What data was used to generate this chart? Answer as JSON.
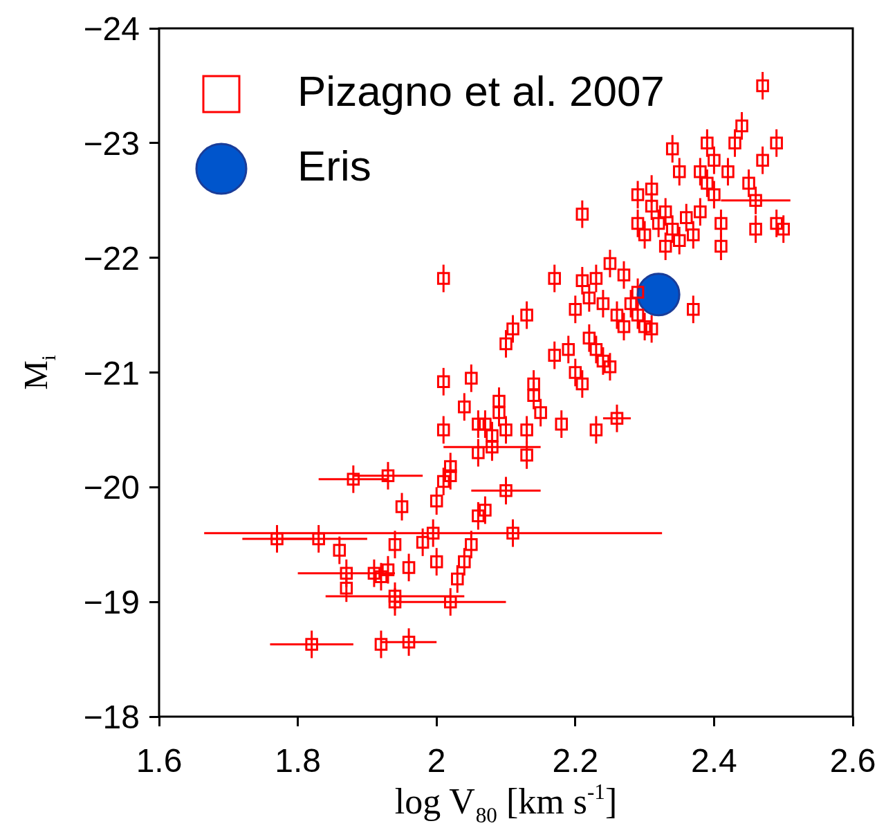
{
  "chart_data": {
    "type": "scatter",
    "xlabel": "log V$_{80}$ [km s$^{-1}$]",
    "ylabel": "M$_{i}$",
    "xlim": [
      1.6,
      2.6
    ],
    "ylim": [
      -18,
      -24
    ],
    "xticks": [
      1.6,
      1.8,
      2,
      2.2,
      2.4,
      2.6
    ],
    "yticks": [
      {
        "value": -24,
        "label": "−24"
      },
      {
        "value": -23,
        "label": "−23"
      },
      {
        "value": -22,
        "label": "−22"
      },
      {
        "value": -21,
        "label": "−21"
      },
      {
        "value": -20,
        "label": "−20"
      },
      {
        "value": -19,
        "label": "−19"
      },
      {
        "value": -18,
        "label": "−18"
      }
    ],
    "grid": false,
    "legend": "top left",
    "series": [
      {
        "name": "Pizagno et al. 2007",
        "color": "#ff0000",
        "marker": "square",
        "x": [
          1.77,
          1.83,
          1.86,
          1.87,
          1.87,
          1.91,
          1.92,
          1.93,
          1.94,
          1.94,
          1.94,
          1.96,
          1.98,
          2.0,
          2.02,
          2.03,
          2.04,
          2.05,
          2.06,
          2.07,
          2.11,
          2.1,
          1.995,
          1.82,
          1.92,
          1.96,
          1.88,
          1.93,
          1.95,
          2.0,
          2.01,
          2.02,
          2.02,
          2.06,
          2.07,
          2.08,
          2.09,
          2.1,
          2.08,
          2.13,
          2.13,
          2.14,
          2.15,
          2.14,
          2.06,
          2.04,
          2.05,
          2.01,
          2.01,
          2.09,
          2.18,
          2.23,
          2.26,
          2.1,
          2.11,
          2.13,
          2.17,
          2.19,
          2.2,
          2.21,
          2.2,
          2.22,
          2.23,
          2.24,
          2.25,
          2.26,
          2.27,
          2.17,
          2.21,
          2.22,
          2.23,
          2.24,
          2.25,
          2.27,
          2.28,
          2.29,
          2.3,
          2.31,
          2.29,
          2.37,
          2.01,
          2.21,
          2.29,
          2.29,
          2.3,
          2.31,
          2.31,
          2.32,
          2.33,
          2.33,
          2.34,
          2.34,
          2.35,
          2.35,
          2.36,
          2.37,
          2.38,
          2.38,
          2.39,
          2.39,
          2.4,
          2.4,
          2.41,
          2.41,
          2.42,
          2.43,
          2.44,
          2.45,
          2.46,
          2.46,
          2.47,
          2.47,
          2.49,
          2.49,
          2.5
        ],
        "values": [
          -19.55,
          -19.55,
          -19.45,
          -19.25,
          -19.12,
          -19.25,
          -19.22,
          -19.28,
          -19.5,
          -19.05,
          -19.0,
          -19.3,
          -19.52,
          -19.35,
          -19.0,
          -19.2,
          -19.35,
          -19.5,
          -19.75,
          -19.8,
          -19.6,
          -19.97,
          -19.6,
          -18.63,
          -18.63,
          -18.65,
          -20.07,
          -20.1,
          -19.83,
          -19.88,
          -20.05,
          -20.1,
          -20.18,
          -20.3,
          -20.55,
          -20.45,
          -20.75,
          -20.5,
          -20.35,
          -20.28,
          -20.5,
          -20.8,
          -20.65,
          -20.9,
          -20.55,
          -20.7,
          -20.95,
          -20.92,
          -20.5,
          -20.65,
          -20.55,
          -20.5,
          -20.6,
          -21.25,
          -21.38,
          -21.5,
          -21.15,
          -21.2,
          -21.0,
          -20.9,
          -21.55,
          -21.3,
          -21.2,
          -21.1,
          -21.05,
          -21.5,
          -21.4,
          -21.82,
          -21.8,
          -21.65,
          -21.82,
          -21.6,
          -21.95,
          -21.85,
          -21.6,
          -21.5,
          -21.4,
          -21.38,
          -21.7,
          -21.55,
          -21.82,
          -22.38,
          -22.3,
          -22.55,
          -22.2,
          -22.45,
          -22.6,
          -22.3,
          -22.1,
          -22.4,
          -22.25,
          -22.95,
          -22.75,
          -22.15,
          -22.35,
          -22.2,
          -22.4,
          -22.75,
          -23.0,
          -22.65,
          -22.85,
          -22.55,
          -22.3,
          -22.1,
          -22.75,
          -23.0,
          -23.15,
          -22.65,
          -22.5,
          -22.25,
          -22.85,
          -23.5,
          -23.0,
          -22.3,
          -22.25
        ],
        "errors": [
          0.12,
          0.12,
          0.12,
          0.12,
          0.12,
          0.12,
          0.12,
          0.12,
          0.12,
          0.12,
          0.12,
          0.12,
          0.12,
          0.12,
          0.12,
          0.12,
          0.12,
          0.12,
          0.12,
          0.12,
          0.12,
          0.12,
          0.12,
          0.12,
          0.12,
          0.12,
          0.12,
          0.12,
          0.12,
          0.12,
          0.12,
          0.12,
          0.12,
          0.12,
          0.12,
          0.12,
          0.12,
          0.12,
          0.12,
          0.12,
          0.12,
          0.12,
          0.12,
          0.12,
          0.12,
          0.12,
          0.12,
          0.12,
          0.12,
          0.12,
          0.12,
          0.12,
          0.12,
          0.12,
          0.12,
          0.12,
          0.12,
          0.12,
          0.12,
          0.12,
          0.12,
          0.12,
          0.12,
          0.12,
          0.12,
          0.12,
          0.12,
          0.12,
          0.12,
          0.12,
          0.12,
          0.12,
          0.12,
          0.12,
          0.12,
          0.12,
          0.12,
          0.12,
          0.12,
          0.12,
          0.12,
          0.12,
          0.12,
          0.12,
          0.12,
          0.12,
          0.12,
          0.12,
          0.12,
          0.12,
          0.12,
          0.12,
          0.12,
          0.12,
          0.12,
          0.12,
          0.12,
          0.12,
          0.12,
          0.12,
          0.12,
          0.12,
          0.12,
          0.12,
          0.12,
          0.12,
          0.12,
          0.12,
          0.12,
          0.12,
          0.12,
          0.12,
          0.12,
          0.12,
          0.12
        ],
        "xerrors": [
          0.05,
          0.07,
          null,
          0.07,
          null,
          null,
          null,
          null,
          null,
          0.1,
          null,
          null,
          null,
          null,
          0.08,
          null,
          null,
          null,
          null,
          null,
          null,
          0.05,
          0.33,
          0.06,
          null,
          0.04,
          0.05,
          0.05,
          null,
          null,
          null,
          null,
          null,
          null,
          null,
          null,
          null,
          null,
          0.07,
          null,
          null,
          null,
          null,
          null,
          null,
          null,
          null,
          null,
          null,
          null,
          null,
          null,
          0.02,
          null,
          null,
          null,
          null,
          null,
          null,
          null,
          null,
          null,
          null,
          null,
          null,
          null,
          null,
          null,
          null,
          null,
          null,
          null,
          null,
          null,
          null,
          null,
          null,
          null,
          null,
          null,
          null,
          null,
          null,
          null,
          null,
          null,
          null,
          null,
          null,
          null,
          null,
          null,
          null,
          null,
          null,
          null,
          null,
          null,
          null,
          null,
          null,
          null,
          null,
          null,
          null,
          null,
          null,
          null,
          0.05,
          null,
          null,
          null,
          null,
          null,
          null
        ]
      },
      {
        "name": "Eris",
        "color": "#0055cc",
        "marker": "circle",
        "x": [
          2.32
        ],
        "values": [
          -21.68
        ]
      }
    ]
  }
}
